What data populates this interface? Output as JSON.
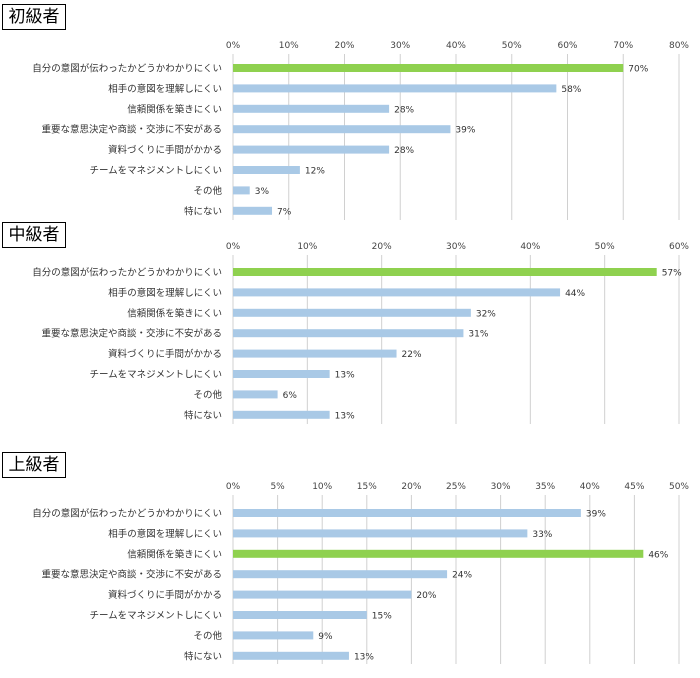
{
  "colors": {
    "bar": "#a9c9e6",
    "highlight": "#8fd14f",
    "grid": "#d0d0d0"
  },
  "chart_data": [
    {
      "type": "bar",
      "orientation": "horizontal",
      "title": "初級者",
      "categories": [
        "自分の意図が伝わったかどうかわかりにくい",
        "相手の意図を理解しにくい",
        "信頼関係を築きにくい",
        "重要な意思決定や商談・交渉に不安がある",
        "資料づくりに手間がかかる",
        "チームをマネジメントしにくい",
        "その他",
        "特にない"
      ],
      "values": [
        70,
        58,
        28,
        39,
        28,
        12,
        3,
        7
      ],
      "value_labels": [
        "70%",
        "58%",
        "28%",
        "39%",
        "28%",
        "12%",
        "3%",
        "7%"
      ],
      "highlight_index": 0,
      "xlim": [
        0,
        80
      ],
      "ticks": [
        "0%",
        "10%",
        "20%",
        "30%",
        "40%",
        "50%",
        "60%",
        "70%",
        "80%"
      ],
      "grid": true
    },
    {
      "type": "bar",
      "orientation": "horizontal",
      "title": "中級者",
      "categories": [
        "自分の意図が伝わったかどうかわかりにくい",
        "相手の意図を理解しにくい",
        "信頼関係を築きにくい",
        "重要な意思決定や商談・交渉に不安がある",
        "資料づくりに手間がかかる",
        "チームをマネジメントしにくい",
        "その他",
        "特にない"
      ],
      "values": [
        57,
        44,
        32,
        31,
        22,
        13,
        6,
        13
      ],
      "value_labels": [
        "57%",
        "44%",
        "32%",
        "31%",
        "22%",
        "13%",
        "6%",
        "13%"
      ],
      "highlight_index": 0,
      "xlim": [
        0,
        60
      ],
      "ticks": [
        "0%",
        "10%",
        "20%",
        "30%",
        "40%",
        "50%",
        "60%"
      ],
      "grid": true
    },
    {
      "type": "bar",
      "orientation": "horizontal",
      "title": "上級者",
      "categories": [
        "自分の意図が伝わったかどうかわかりにくい",
        "相手の意図を理解しにくい",
        "信頼関係を築きにくい",
        "重要な意思決定や商談・交渉に不安がある",
        "資料づくりに手間がかかる",
        "チームをマネジメントしにくい",
        "その他",
        "特にない"
      ],
      "values": [
        39,
        33,
        46,
        24,
        20,
        15,
        9,
        13
      ],
      "value_labels": [
        "39%",
        "33%",
        "46%",
        "24%",
        "20%",
        "15%",
        "9%",
        "13%"
      ],
      "highlight_index": 2,
      "xlim": [
        0,
        50
      ],
      "ticks": [
        "0%",
        "5%",
        "10%",
        "15%",
        "20%",
        "25%",
        "30%",
        "35%",
        "40%",
        "45%",
        "50%"
      ],
      "grid": true
    }
  ]
}
